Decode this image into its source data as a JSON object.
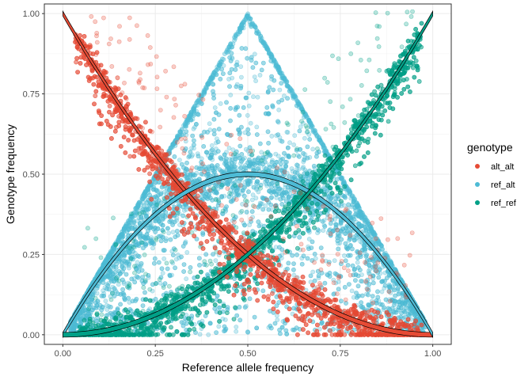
{
  "chart_data": {
    "type": "scatter",
    "xlabel": "Reference allele frequency",
    "ylabel": "Genotype frequency",
    "xlim": [
      -0.05,
      1.05
    ],
    "ylim": [
      -0.03,
      1.03
    ],
    "x_ticks": [
      0.0,
      0.25,
      0.5,
      0.75,
      1.0
    ],
    "y_ticks": [
      0.0,
      0.25,
      0.5,
      0.75,
      1.0
    ],
    "x_tick_labels": [
      "0.00",
      "0.25",
      "0.50",
      "0.75",
      "1.00"
    ],
    "y_tick_labels": [
      "0.00",
      "0.25",
      "0.50",
      "0.75",
      "1.00"
    ],
    "grid": true,
    "legend": {
      "title": "genotype",
      "placement": "right",
      "entries": [
        "alt_alt",
        "ref_alt",
        "ref_ref"
      ]
    },
    "colors": {
      "alt_alt": "#E64B35",
      "ref_alt": "#4DBBD5",
      "ref_ref": "#00A087"
    },
    "series": [
      {
        "name": "alt_alt",
        "color": "#E64B35",
        "expected": "(1-p)^2",
        "region": "lower edge y ≈ (1-p)^2 scatter band",
        "sample_points": [
          {
            "x": 0.0,
            "y": 1.0
          },
          {
            "x": 0.1,
            "y": 0.81
          },
          {
            "x": 0.2,
            "y": 0.62
          },
          {
            "x": 0.25,
            "y": 0.55
          },
          {
            "x": 0.3,
            "y": 0.47
          },
          {
            "x": 0.4,
            "y": 0.34
          },
          {
            "x": 0.5,
            "y": 0.24
          },
          {
            "x": 0.6,
            "y": 0.15
          },
          {
            "x": 0.7,
            "y": 0.08
          },
          {
            "x": 0.8,
            "y": 0.04
          },
          {
            "x": 0.9,
            "y": 0.01
          },
          {
            "x": 1.0,
            "y": 0.0
          }
        ]
      },
      {
        "name": "ref_alt",
        "color": "#4DBBD5",
        "expected": "2p(1-p)",
        "region": "triangle bounded by y = 2p and y = 2(1-p)",
        "sample_points": [
          {
            "x": 0.0,
            "y": 0.0
          },
          {
            "x": 0.1,
            "y": 0.18
          },
          {
            "x": 0.2,
            "y": 0.33
          },
          {
            "x": 0.3,
            "y": 0.42
          },
          {
            "x": 0.4,
            "y": 0.48
          },
          {
            "x": 0.5,
            "y": 0.5
          },
          {
            "x": 0.6,
            "y": 0.48
          },
          {
            "x": 0.7,
            "y": 0.42
          },
          {
            "x": 0.8,
            "y": 0.33
          },
          {
            "x": 0.9,
            "y": 0.18
          },
          {
            "x": 1.0,
            "y": 0.0
          }
        ]
      },
      {
        "name": "ref_ref",
        "color": "#00A087",
        "expected": "p^2",
        "region": "band around y ≈ p^2",
        "sample_points": [
          {
            "x": 0.0,
            "y": 0.0
          },
          {
            "x": 0.1,
            "y": 0.01
          },
          {
            "x": 0.2,
            "y": 0.04
          },
          {
            "x": 0.3,
            "y": 0.08
          },
          {
            "x": 0.4,
            "y": 0.15
          },
          {
            "x": 0.5,
            "y": 0.25
          },
          {
            "x": 0.6,
            "y": 0.35
          },
          {
            "x": 0.7,
            "y": 0.48
          },
          {
            "x": 0.75,
            "y": 0.56
          },
          {
            "x": 0.8,
            "y": 0.63
          },
          {
            "x": 0.9,
            "y": 0.8
          },
          {
            "x": 1.0,
            "y": 1.0
          }
        ]
      }
    ],
    "reference_curves": [
      {
        "formula": "(1-p)^2",
        "color": "#000000"
      },
      {
        "formula": "2p(1-p)",
        "color": "#000000"
      },
      {
        "formula": "p^2",
        "color": "#000000"
      }
    ]
  }
}
